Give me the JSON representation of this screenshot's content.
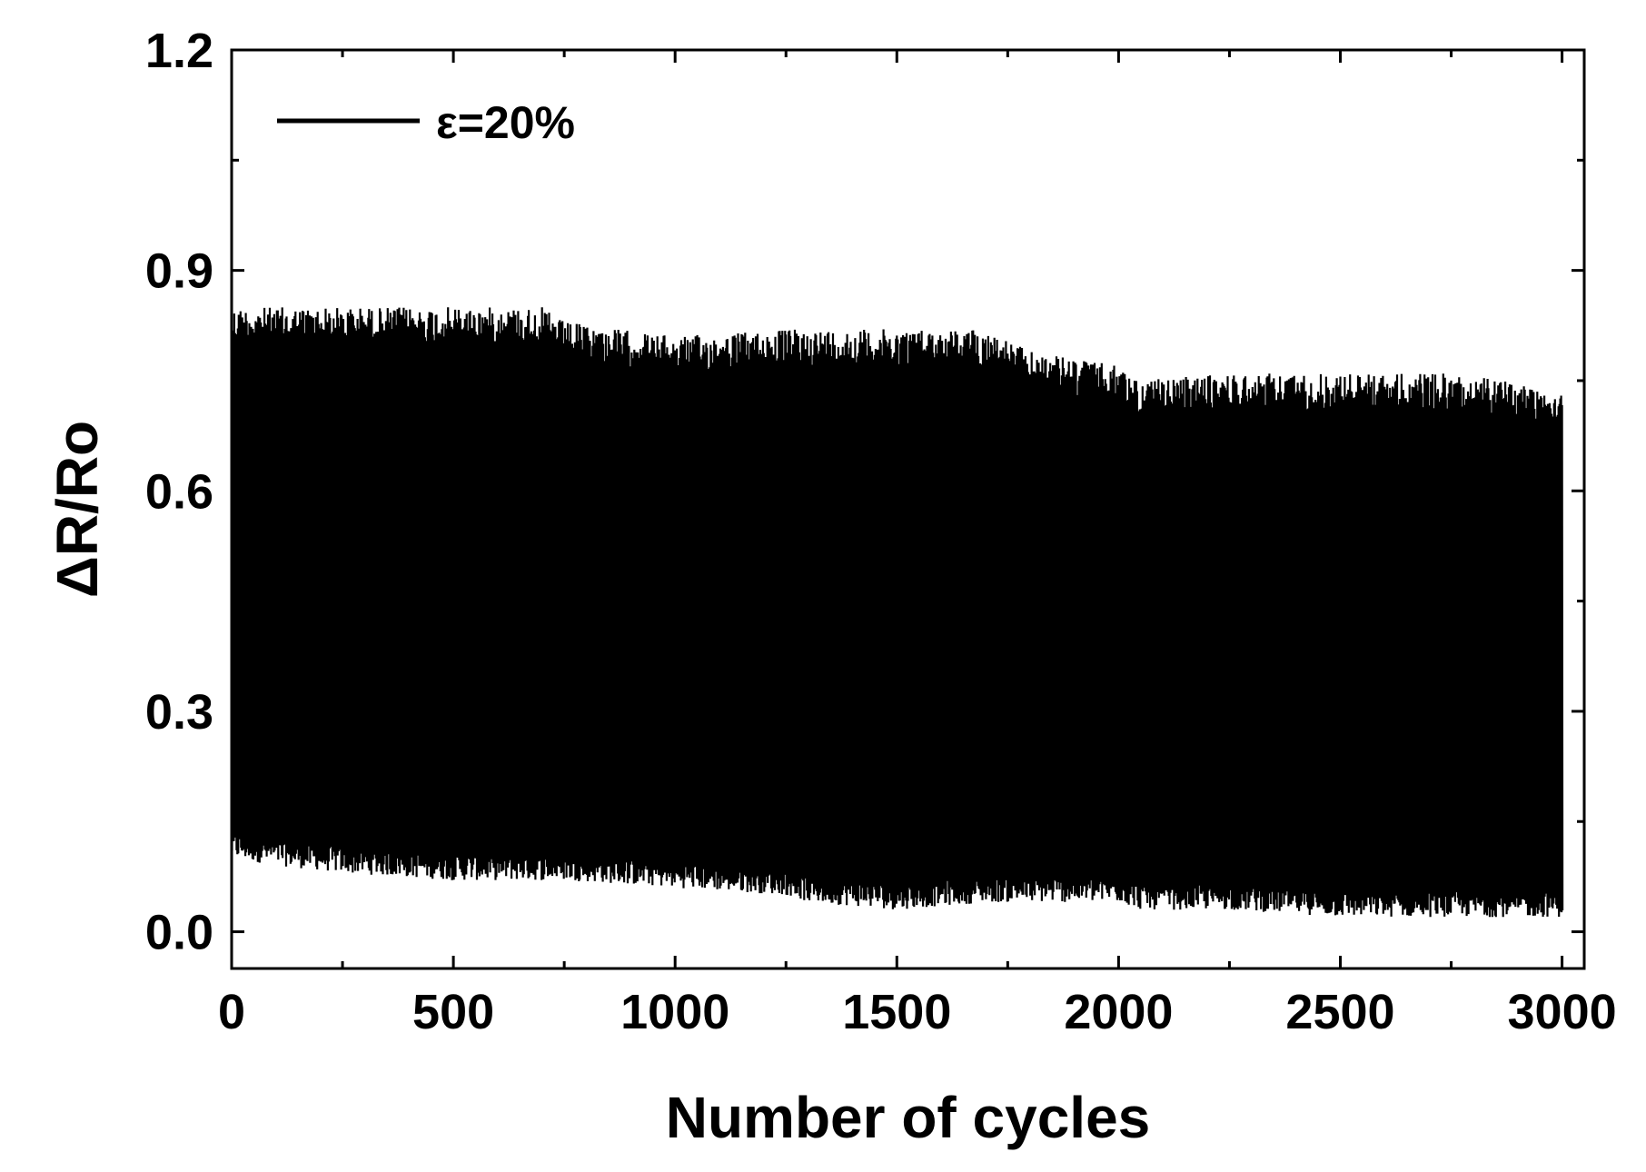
{
  "chart_data": {
    "type": "line",
    "title": "",
    "xlabel": "Number of cycles",
    "ylabel": "ΔR/Ro",
    "xlim": [
      0,
      3050
    ],
    "ylim": [
      -0.05,
      1.2
    ],
    "xticks": [
      0,
      500,
      1000,
      1500,
      2000,
      2500,
      3000
    ],
    "xtick_labels": [
      "0",
      "500",
      "1000",
      "1500",
      "2000",
      "2500",
      "3000"
    ],
    "yticks": [
      0.0,
      0.3,
      0.6,
      0.9,
      1.2
    ],
    "ytick_labels": [
      "0.0",
      "0.3",
      "0.6",
      "0.9",
      "1.2"
    ],
    "grid": false,
    "legend": {
      "position": "top-left",
      "entries": [
        "ε=20%"
      ]
    },
    "series": [
      {
        "name": "ε=20%",
        "color": "#000000",
        "description_of_shape": "dense cyclic oscillation; envelope peaks and troughs below",
        "envelope_x": [
          0,
          100,
          250,
          500,
          700,
          750,
          1000,
          1250,
          1300,
          1500,
          1700,
          1800,
          2000,
          2050,
          2250,
          2500,
          2750,
          3000
        ],
        "envelope_max": [
          0.85,
          0.85,
          0.85,
          0.85,
          0.85,
          0.83,
          0.81,
          0.82,
          0.82,
          0.82,
          0.82,
          0.79,
          0.77,
          0.75,
          0.76,
          0.76,
          0.76,
          0.74
        ],
        "envelope_min": [
          0.1,
          0.09,
          0.08,
          0.07,
          0.07,
          0.07,
          0.06,
          0.05,
          0.04,
          0.03,
          0.04,
          0.04,
          0.04,
          0.03,
          0.03,
          0.02,
          0.02,
          0.02
        ],
        "cycles": 3000,
        "last_value": 0.26
      }
    ]
  }
}
